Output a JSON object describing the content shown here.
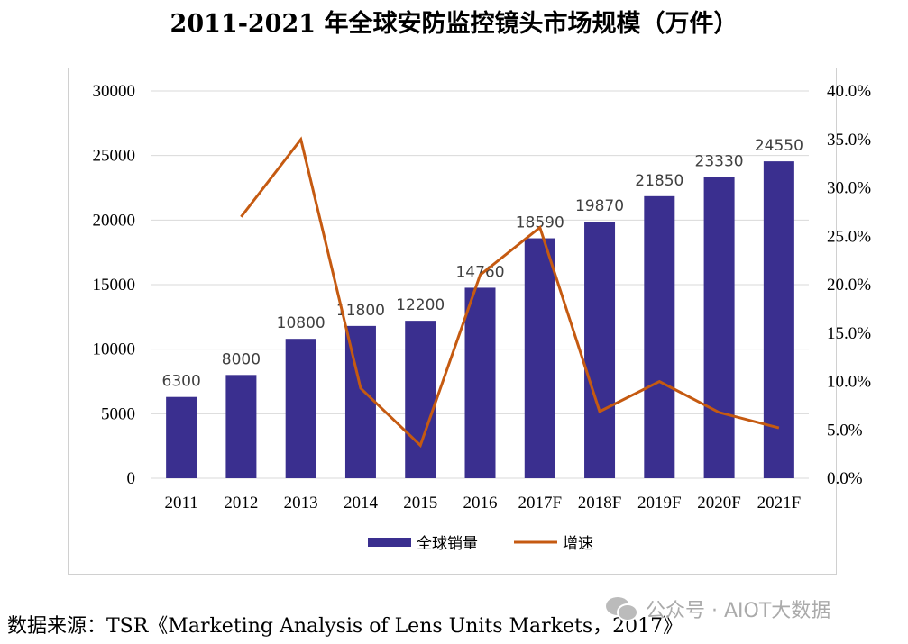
{
  "chart_data": {
    "type": "bar",
    "title": "2011-2021 年全球安防监控镜头市场规模（万件）",
    "categories": [
      "2011",
      "2012",
      "2013",
      "2014",
      "2015",
      "2016",
      "2017F",
      "2018F",
      "2019F",
      "2020F",
      "2021F"
    ],
    "series": [
      {
        "name": "全球销量",
        "type": "bar",
        "axis": "left",
        "color": "#3a2f8f",
        "values": [
          6300,
          8000,
          10800,
          11800,
          12200,
          14760,
          18590,
          19870,
          21850,
          23330,
          24550
        ]
      },
      {
        "name": "增速",
        "type": "line",
        "axis": "right",
        "color": "#c55a11",
        "values": [
          null,
          27.0,
          35.0,
          9.3,
          3.4,
          21.0,
          25.9,
          6.9,
          10.0,
          6.8,
          5.2
        ]
      }
    ],
    "ylim": [
      0,
      30000
    ],
    "yticks": [
      "0",
      "5000",
      "10000",
      "15000",
      "20000",
      "25000",
      "30000"
    ],
    "y2lim": [
      0,
      40
    ],
    "y2ticks": [
      "0.0%",
      "5.0%",
      "10.0%",
      "15.0%",
      "20.0%",
      "25.0%",
      "30.0%",
      "35.0%",
      "40.0%"
    ],
    "grid": true,
    "legend_position": "bottom"
  },
  "source": "数据来源：TSR《Marketing Analysis of Lens Units Markets，2017》",
  "watermark": "公众号 · AIOT大数据"
}
